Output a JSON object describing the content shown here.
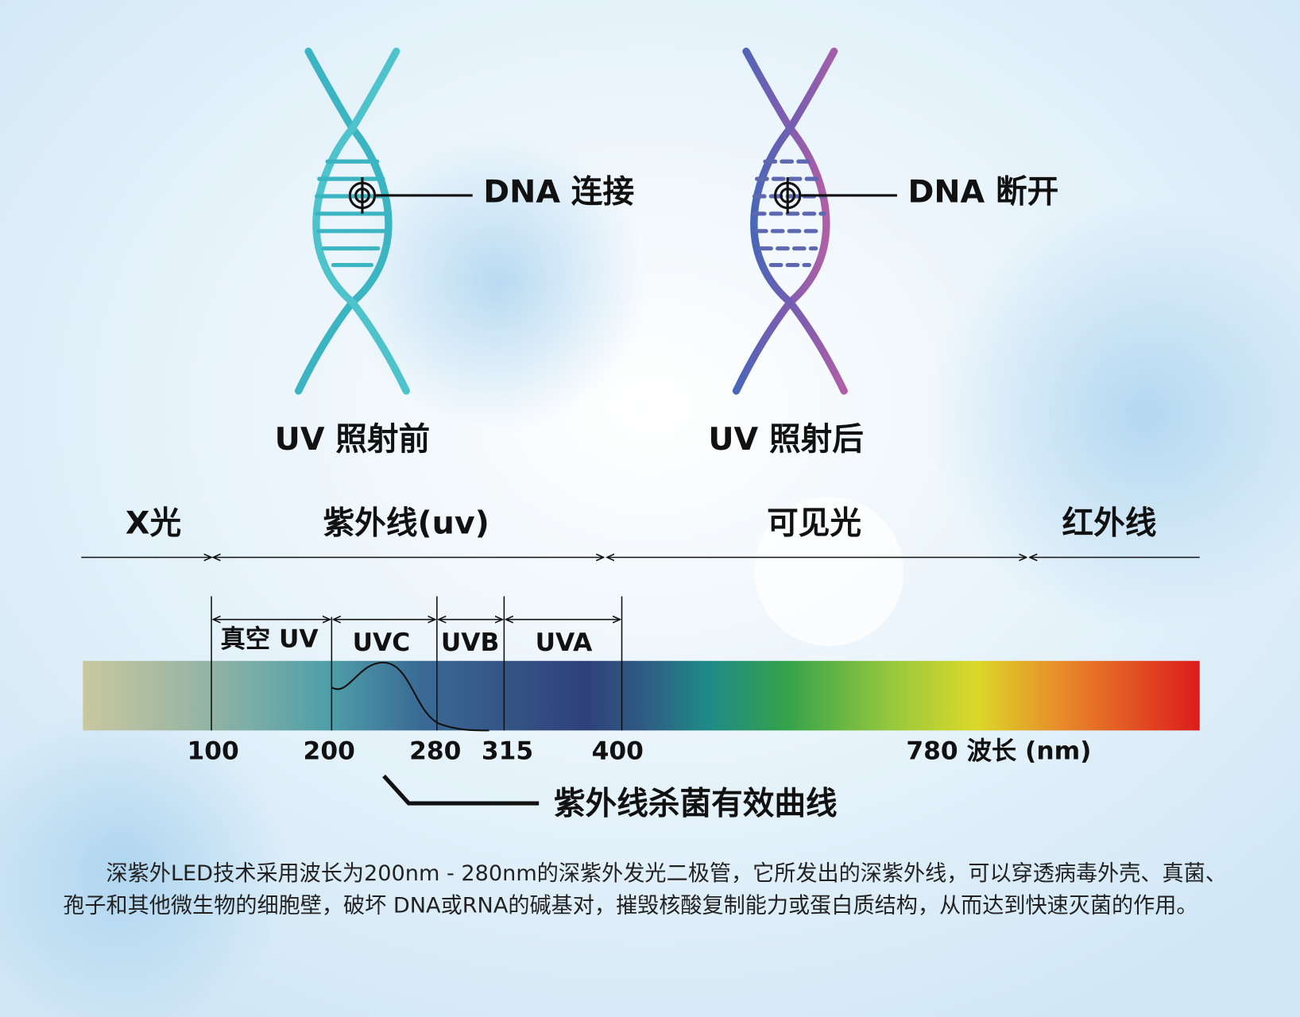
{
  "panels": [
    {
      "callout": "DNA 连接",
      "caption": "UV 照射前"
    },
    {
      "callout": "DNA 断开",
      "caption": "UV 照射后"
    }
  ],
  "spectrum": {
    "regions": [
      "X光",
      "紫外线(uv)",
      "可见光",
      "红外线"
    ],
    "uv_bands": [
      "真空 UV",
      "UVC",
      "UVB",
      "UVA"
    ],
    "wavelength_labels": [
      "100",
      "200",
      "280",
      "315",
      "400",
      "780 波长 (nm)"
    ],
    "curve_label": "紫外线杀菌有效曲线"
  },
  "description": "深紫外LED技术采用波长为200nm - 280nm的深紫外发光二极管，它所发出的深紫外线，可以穿透病毒外壳、真菌、孢子和其他微生物的细胞壁，破坏 DNA或RNA的碱基对，摧毁核酸复制能力或蛋白质结构，从而达到快速灭菌的作用。"
}
